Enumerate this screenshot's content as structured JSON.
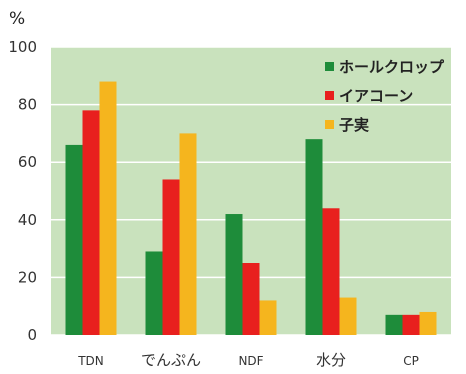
{
  "chart_data": {
    "type": "bar",
    "ylabel": "%",
    "ylim": [
      0,
      100
    ],
    "yticks": [
      0,
      20,
      40,
      60,
      80,
      100
    ],
    "grid": true,
    "legend_position": "top-right",
    "categories": [
      "TDN",
      "でんぷん",
      "NDF",
      "水分",
      "CP"
    ],
    "series": [
      {
        "name": "ホールクロップ",
        "color": "#1e8c3a",
        "values": [
          66,
          29,
          42,
          68,
          7
        ]
      },
      {
        "name": "イアコーン",
        "color": "#e8201e",
        "values": [
          78,
          54,
          25,
          44,
          7
        ]
      },
      {
        "name": "子実",
        "color": "#f5b51e",
        "values": [
          88,
          70,
          12,
          13,
          8
        ]
      }
    ],
    "plot_background": "#c9e2bd",
    "grid_color": "#ffffff"
  }
}
